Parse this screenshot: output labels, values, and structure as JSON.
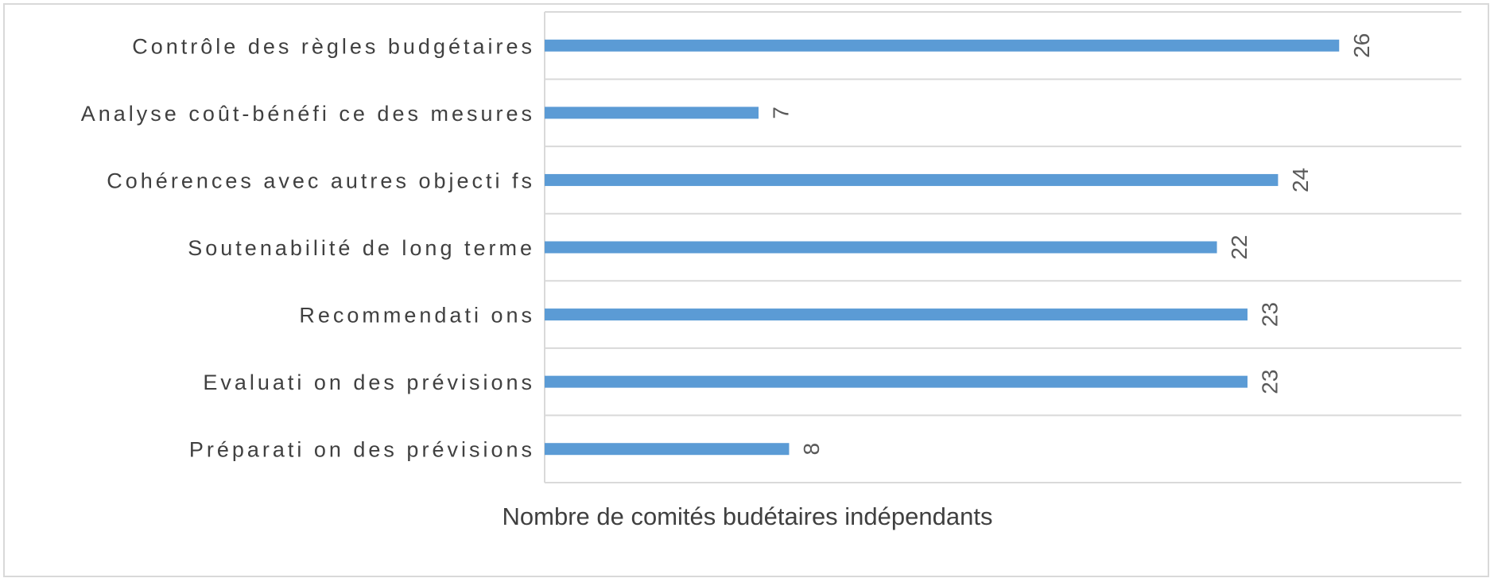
{
  "chart_data": {
    "type": "bar",
    "orientation": "horizontal",
    "categories": [
      "Contrôle des règles budgétaires",
      "Analyse coût-bénéfi ce des mesures",
      "Cohérences avec autres objecti fs",
      "Soutenabilité de long terme",
      "Recommendati ons",
      "Evaluati on des prévisions",
      "Préparati on des  prévisions"
    ],
    "values": [
      26,
      7,
      24,
      22,
      23,
      23,
      8
    ],
    "xlabel": "Nombre de comités budétaires indépendants",
    "ylabel": "",
    "xlim": [
      0,
      30
    ],
    "grid": "horizontal",
    "legend": "none",
    "bar_color": "#5b9bd5"
  }
}
